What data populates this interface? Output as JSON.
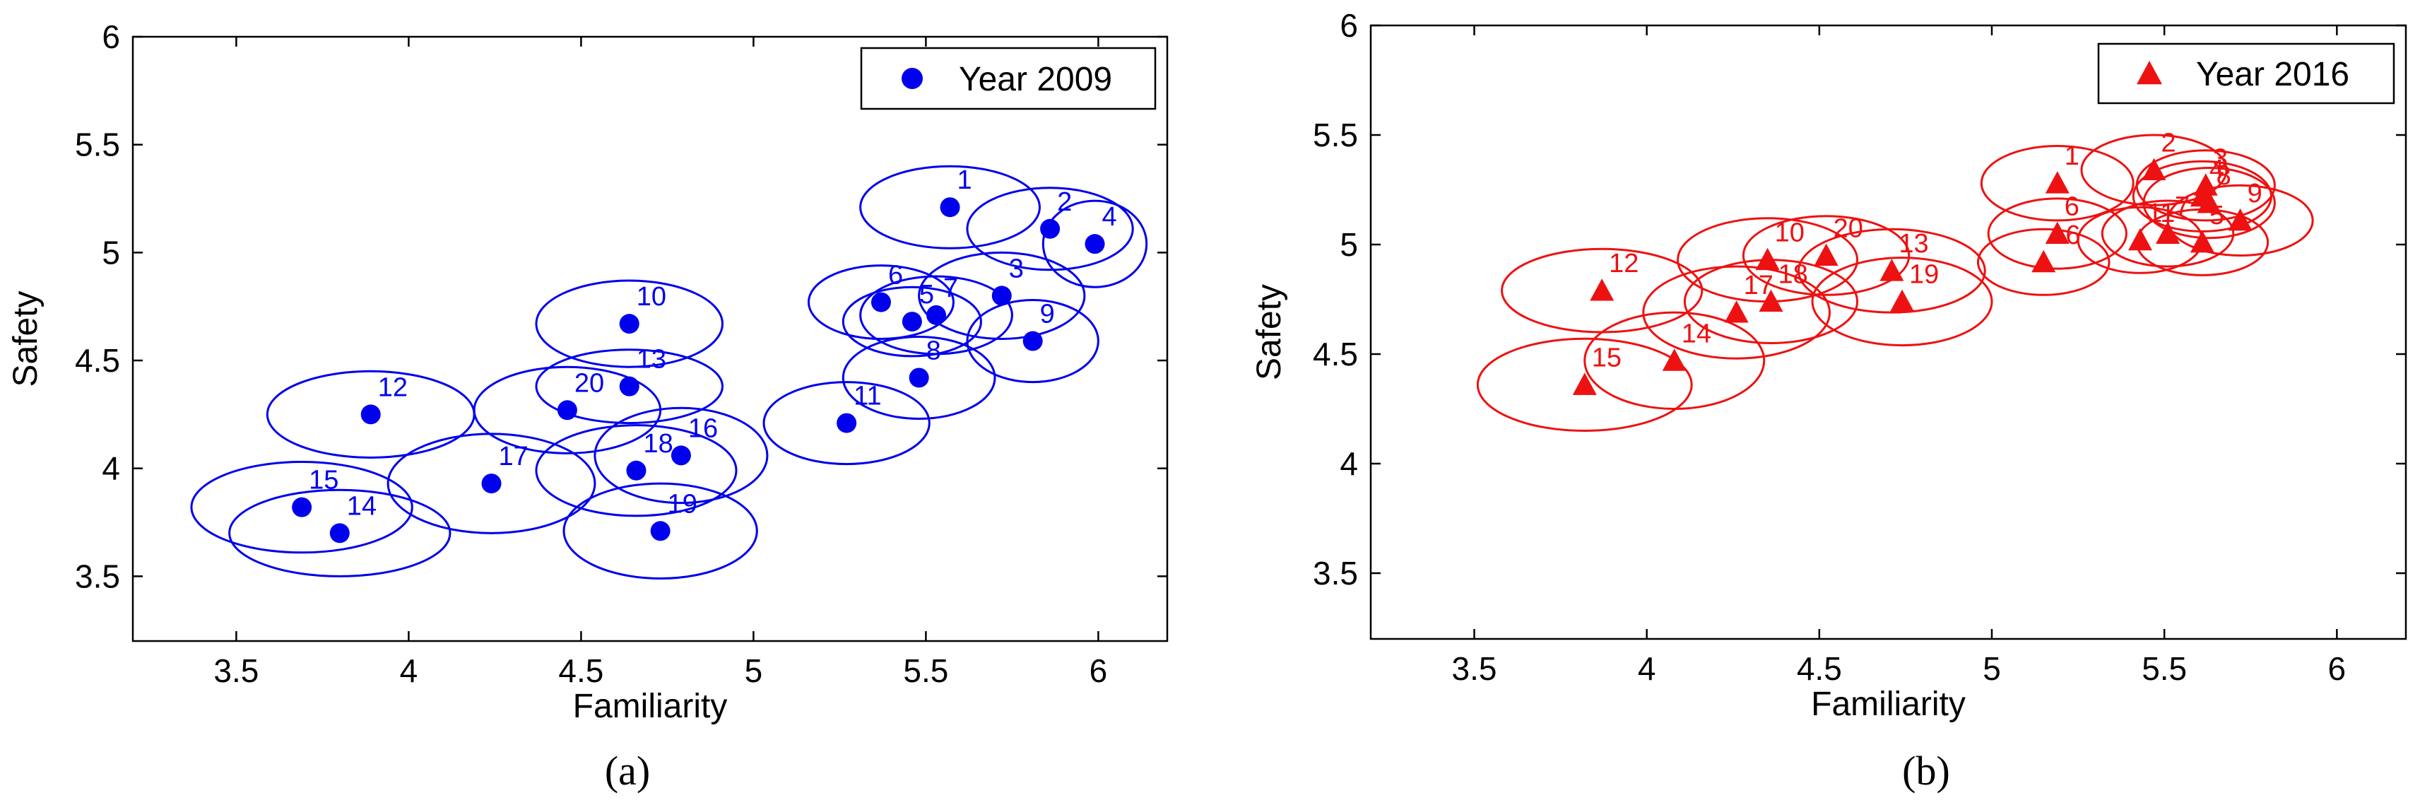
{
  "chart_data": [
    {
      "type": "scatter",
      "panel_label": "(a)",
      "xlabel": "Familiarity",
      "ylabel": "Safety",
      "xlim": [
        3.2,
        6.2
      ],
      "ylim": [
        3.2,
        6.0
      ],
      "xticks": [
        "3.5",
        "4",
        "4.5",
        "5",
        "5.5",
        "6"
      ],
      "yticks": [
        "3.5",
        "4",
        "4.5",
        "5",
        "5.5",
        "6"
      ],
      "grid": false,
      "legend": {
        "label": "Year 2009",
        "placement": "top-right",
        "marker": "circle"
      },
      "color": "#0000ee",
      "series": [
        {
          "name": "Year 2009",
          "marker": "circle",
          "points": [
            {
              "id": "1",
              "x": 5.57,
              "y": 5.21,
              "rx": 0.26,
              "ry": 0.19
            },
            {
              "id": "2",
              "x": 5.86,
              "y": 5.11,
              "rx": 0.24,
              "ry": 0.19
            },
            {
              "id": "3",
              "x": 5.72,
              "y": 4.8,
              "rx": 0.24,
              "ry": 0.2
            },
            {
              "id": "4",
              "x": 5.99,
              "y": 5.04,
              "rx": 0.15,
              "ry": 0.2
            },
            {
              "id": "5",
              "x": 5.46,
              "y": 4.68,
              "rx": 0.2,
              "ry": 0.16
            },
            {
              "id": "6",
              "x": 5.37,
              "y": 4.77,
              "rx": 0.21,
              "ry": 0.17
            },
            {
              "id": "7",
              "x": 5.53,
              "y": 4.71,
              "rx": 0.22,
              "ry": 0.18
            },
            {
              "id": "8",
              "x": 5.48,
              "y": 4.42,
              "rx": 0.22,
              "ry": 0.19
            },
            {
              "id": "9",
              "x": 5.81,
              "y": 4.59,
              "rx": 0.19,
              "ry": 0.19
            },
            {
              "id": "10",
              "x": 4.64,
              "y": 4.67,
              "rx": 0.27,
              "ry": 0.2
            },
            {
              "id": "11",
              "x": 5.27,
              "y": 4.21,
              "rx": 0.24,
              "ry": 0.19
            },
            {
              "id": "12",
              "x": 3.89,
              "y": 4.25,
              "rx": 0.3,
              "ry": 0.2
            },
            {
              "id": "13",
              "x": 4.64,
              "y": 4.38,
              "rx": 0.27,
              "ry": 0.17
            },
            {
              "id": "14",
              "x": 3.8,
              "y": 3.7,
              "rx": 0.32,
              "ry": 0.2
            },
            {
              "id": "15",
              "x": 3.69,
              "y": 3.82,
              "rx": 0.32,
              "ry": 0.21
            },
            {
              "id": "16",
              "x": 4.79,
              "y": 4.06,
              "rx": 0.25,
              "ry": 0.22
            },
            {
              "id": "17",
              "x": 4.24,
              "y": 3.93,
              "rx": 0.3,
              "ry": 0.23
            },
            {
              "id": "18",
              "x": 4.66,
              "y": 3.99,
              "rx": 0.29,
              "ry": 0.21
            },
            {
              "id": "19",
              "x": 4.73,
              "y": 3.71,
              "rx": 0.28,
              "ry": 0.22
            },
            {
              "id": "20",
              "x": 4.46,
              "y": 4.27,
              "rx": 0.27,
              "ry": 0.2
            }
          ]
        }
      ]
    },
    {
      "type": "scatter",
      "panel_label": "(b)",
      "xlabel": "Familiarity",
      "ylabel": "Safety",
      "xlim": [
        3.2,
        6.2
      ],
      "ylim": [
        3.2,
        6.0
      ],
      "xticks": [
        "3.5",
        "4",
        "4.5",
        "5",
        "5.5",
        "6"
      ],
      "yticks": [
        "3.5",
        "4",
        "4.5",
        "5",
        "5.5",
        "6"
      ],
      "grid": false,
      "legend": {
        "label": "Year 2016",
        "placement": "top-right",
        "marker": "triangle"
      },
      "color": "#ee1111",
      "series": [
        {
          "name": "Year 2016",
          "marker": "triangle",
          "points": [
            {
              "id": "1",
              "x": 5.19,
              "y": 5.28,
              "rx": 0.22,
              "ry": 0.17
            },
            {
              "id": "2",
              "x": 5.47,
              "y": 5.34,
              "rx": 0.21,
              "ry": 0.16
            },
            {
              "id": "3",
              "x": 5.62,
              "y": 5.27,
              "rx": 0.2,
              "ry": 0.16
            },
            {
              "id": "4",
              "x": 5.61,
              "y": 5.22,
              "rx": 0.2,
              "ry": 0.16
            },
            {
              "id": "5",
              "x": 5.61,
              "y": 5.01,
              "rx": 0.19,
              "ry": 0.15
            },
            {
              "id": "6",
              "x": 5.19,
              "y": 5.05,
              "rx": 0.2,
              "ry": 0.16
            },
            {
              "id": "7",
              "x": 5.51,
              "y": 5.05,
              "rx": 0.19,
              "ry": 0.15
            },
            {
              "id": "8",
              "x": 5.63,
              "y": 5.19,
              "rx": 0.19,
              "ry": 0.16
            },
            {
              "id": "9",
              "x": 5.72,
              "y": 5.11,
              "rx": 0.21,
              "ry": 0.16
            },
            {
              "id": "10",
              "x": 4.35,
              "y": 4.93,
              "rx": 0.26,
              "ry": 0.19
            },
            {
              "id": "11",
              "x": 5.43,
              "y": 5.02,
              "rx": 0.18,
              "ry": 0.15
            },
            {
              "id": "12",
              "x": 3.87,
              "y": 4.79,
              "rx": 0.29,
              "ry": 0.19
            },
            {
              "id": "13",
              "x": 4.71,
              "y": 4.88,
              "rx": 0.27,
              "ry": 0.19
            },
            {
              "id": "14",
              "x": 4.08,
              "y": 4.47,
              "rx": 0.26,
              "ry": 0.22
            },
            {
              "id": "15",
              "x": 3.82,
              "y": 4.36,
              "rx": 0.31,
              "ry": 0.21
            },
            {
              "id": "16",
              "x": 5.15,
              "y": 4.92,
              "rx": 0.19,
              "ry": 0.15
            },
            {
              "id": "17",
              "x": 4.26,
              "y": 4.69,
              "rx": 0.27,
              "ry": 0.21
            },
            {
              "id": "18",
              "x": 4.36,
              "y": 4.74,
              "rx": 0.25,
              "ry": 0.19
            },
            {
              "id": "19",
              "x": 4.74,
              "y": 4.74,
              "rx": 0.26,
              "ry": 0.2
            },
            {
              "id": "20",
              "x": 4.52,
              "y": 4.95,
              "rx": 0.24,
              "ry": 0.18
            }
          ]
        }
      ]
    }
  ]
}
